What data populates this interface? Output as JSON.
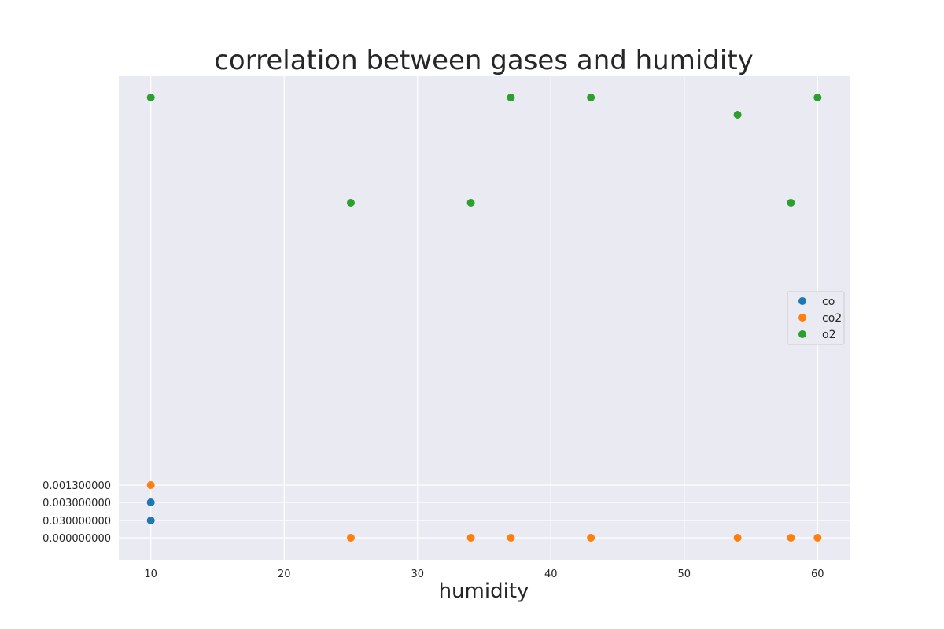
{
  "chart_data": {
    "type": "scatter",
    "title": "correlation between gases and humidity",
    "xlabel": "humidity",
    "ylabel": "",
    "x_ticks": [
      10,
      20,
      30,
      40,
      50,
      60
    ],
    "xlim": [
      7.6,
      62.4
    ],
    "y_axis": "categorical",
    "y_categories": [
      "0.000000000",
      "0.030000000",
      "0.003000000",
      "0.001300000",
      "__o2_low",
      "__o2_mid",
      "__o2_high"
    ],
    "y_tick_labels": [
      "0.000000000",
      "0.030000000",
      "0.003000000",
      "0.001300000"
    ],
    "grid": true,
    "legend_position": "center-right",
    "series": [
      {
        "name": "co",
        "color": "#1f77b4",
        "points": [
          {
            "x": 10,
            "y": "0.030000000"
          },
          {
            "x": 10,
            "y": "0.003000000"
          }
        ]
      },
      {
        "name": "co2",
        "color": "#ff7f0e",
        "points": [
          {
            "x": 10,
            "y": "0.001300000"
          },
          {
            "x": 25,
            "y": "0.000000000"
          },
          {
            "x": 34,
            "y": "0.000000000"
          },
          {
            "x": 37,
            "y": "0.000000000"
          },
          {
            "x": 43,
            "y": "0.000000000"
          },
          {
            "x": 54,
            "y": "0.000000000"
          },
          {
            "x": 58,
            "y": "0.000000000"
          },
          {
            "x": 60,
            "y": "0.000000000"
          }
        ]
      },
      {
        "name": "o2",
        "color": "#2ca02c",
        "points": [
          {
            "x": 10,
            "y": "__o2_high"
          },
          {
            "x": 25,
            "y": "__o2_low"
          },
          {
            "x": 34,
            "y": "__o2_low"
          },
          {
            "x": 37,
            "y": "__o2_high"
          },
          {
            "x": 43,
            "y": "__o2_high"
          },
          {
            "x": 54,
            "y": "__o2_mid"
          },
          {
            "x": 58,
            "y": "__o2_low"
          },
          {
            "x": 60,
            "y": "__o2_high"
          }
        ]
      }
    ]
  }
}
